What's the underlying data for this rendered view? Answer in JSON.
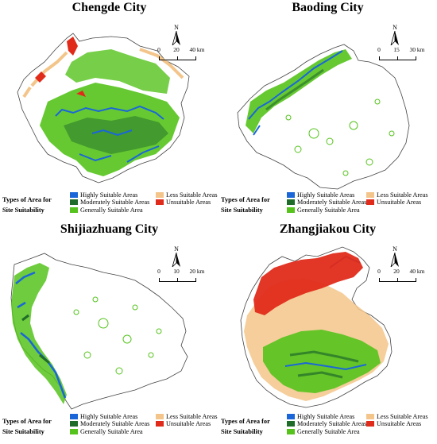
{
  "legend": {
    "title_line1": "Types of Area for",
    "title_line2": "Site Suitability",
    "items": [
      {
        "label": "Highly Suitable Areas",
        "color": "#1a66d9"
      },
      {
        "label": "Moderately Suitable Areas",
        "color": "#1f6b2a"
      },
      {
        "label": "Generally Suitable Area",
        "color": "#55c31c"
      },
      {
        "label": "Less Suitable Areas",
        "color": "#f3c58a"
      },
      {
        "label": "Unsuitable Areas",
        "color": "#e02b1a"
      }
    ]
  },
  "north_arrow_label": "N",
  "panels": [
    {
      "title": "Chengde City",
      "scale": {
        "ticks": [
          "0",
          "20",
          "40 km"
        ]
      }
    },
    {
      "title": "Baoding City",
      "scale": {
        "ticks": [
          "0",
          "15",
          "30 km"
        ]
      }
    },
    {
      "title": "Shijiazhuang City",
      "scale": {
        "ticks": [
          "0",
          "10",
          "20 km"
        ]
      }
    },
    {
      "title": "Zhangjiakou City",
      "scale": {
        "ticks": [
          "0",
          "20",
          "40 km"
        ]
      }
    }
  ]
}
